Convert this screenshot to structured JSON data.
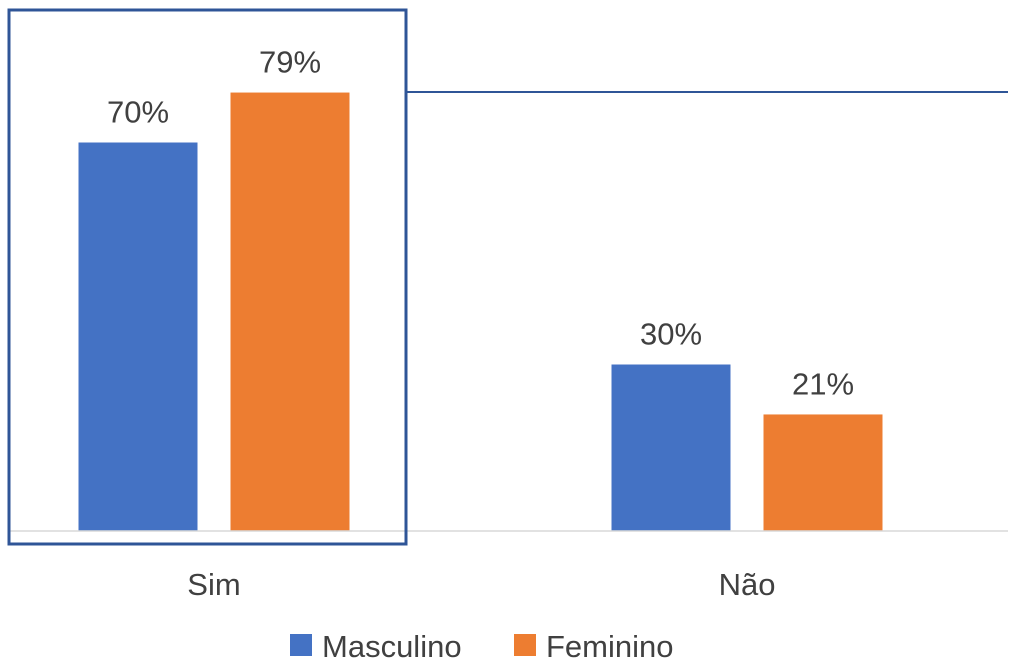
{
  "chart_data": {
    "type": "bar",
    "categories": [
      "Sim",
      "Não"
    ],
    "series": [
      {
        "name": "Masculino",
        "values": [
          70,
          30
        ],
        "labels": [
          "70%",
          "30%"
        ],
        "color": "#4472C4"
      },
      {
        "name": "Feminino",
        "values": [
          79,
          21
        ],
        "labels": [
          "79%",
          "21%"
        ],
        "color": "#ED7D31"
      }
    ],
    "value_unit": "%",
    "ylim": [
      0,
      100
    ],
    "grid": false,
    "legend_position": "bottom",
    "highlight": {
      "category": "Sim",
      "style": "box outline",
      "color": "#2F5597"
    },
    "title": "",
    "xlabel": "",
    "ylabel": ""
  }
}
